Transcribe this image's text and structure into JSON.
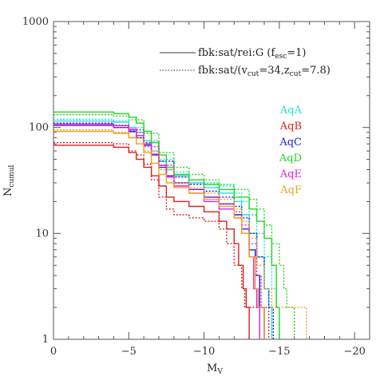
{
  "chart_data": {
    "type": "line",
    "xlabel": "M",
    "xlabel_sub": "V",
    "ylabel": "N",
    "ylabel_sub": "cumul",
    "xlim": [
      0,
      -21
    ],
    "ylim": [
      1,
      1000
    ],
    "y_scale": "log",
    "x_ticks": [
      {
        "value": 0,
        "label": "0"
      },
      {
        "value": -5,
        "label": "−5"
      },
      {
        "value": -10,
        "label": "−10"
      },
      {
        "value": -15,
        "label": "−15"
      },
      {
        "value": -20,
        "label": "−20"
      }
    ],
    "y_ticks": [
      {
        "value": 1,
        "label": "1"
      },
      {
        "value": 10,
        "label": "10"
      },
      {
        "value": 100,
        "label": "100"
      },
      {
        "value": 1000,
        "label": "1000"
      }
    ],
    "legend": {
      "placement": "top-right",
      "entries": [
        {
          "style": "solid",
          "text": "fbk:sat/rei:G (f",
          "sub": "esc",
          "tail": "=1)"
        },
        {
          "style": "dotted",
          "text": "fbk:sat/(v",
          "sub": "cut",
          "mid": "=34,z",
          "sub2": "cut",
          "tail": "=7.8)"
        }
      ]
    },
    "series": [
      {
        "name": "AqA",
        "color": "#22e0e0",
        "solid": [
          [
            0,
            115
          ],
          [
            -3,
            115
          ],
          [
            -4,
            112
          ],
          [
            -5,
            100
          ],
          [
            -5.5,
            90
          ],
          [
            -6,
            75
          ],
          [
            -6.5,
            60
          ],
          [
            -7,
            48
          ],
          [
            -7.5,
            40
          ],
          [
            -8,
            35
          ],
          [
            -9,
            30
          ],
          [
            -10,
            27
          ],
          [
            -11,
            24
          ],
          [
            -12,
            20
          ],
          [
            -12.5,
            15
          ],
          [
            -13,
            10
          ],
          [
            -13.5,
            6
          ],
          [
            -14,
            3
          ],
          [
            -14.3,
            2
          ],
          [
            -14.5,
            1
          ]
        ],
        "dotted": [
          [
            0,
            120
          ],
          [
            -3,
            120
          ],
          [
            -4,
            115
          ],
          [
            -5,
            100
          ],
          [
            -6,
            75
          ],
          [
            -7,
            50
          ],
          [
            -8,
            38
          ],
          [
            -9,
            32
          ],
          [
            -10,
            30
          ],
          [
            -11,
            28
          ],
          [
            -12,
            24
          ],
          [
            -12.5,
            20
          ],
          [
            -13,
            15
          ],
          [
            -13.5,
            10
          ],
          [
            -14,
            6
          ],
          [
            -14.5,
            3
          ],
          [
            -14.8,
            2
          ],
          [
            -15,
            1
          ]
        ]
      },
      {
        "name": "AqB",
        "color": "#e02020",
        "solid": [
          [
            0,
            68
          ],
          [
            -3,
            68
          ],
          [
            -4,
            65
          ],
          [
            -5,
            58
          ],
          [
            -5.5,
            50
          ],
          [
            -6,
            42
          ],
          [
            -6.5,
            35
          ],
          [
            -7,
            28
          ],
          [
            -7.5,
            22
          ],
          [
            -8,
            20
          ],
          [
            -9,
            18
          ],
          [
            -10,
            16
          ],
          [
            -11,
            13
          ],
          [
            -11.5,
            11
          ],
          [
            -12,
            8
          ],
          [
            -12.3,
            5
          ],
          [
            -12.6,
            3
          ],
          [
            -12.8,
            2
          ],
          [
            -13,
            1
          ]
        ],
        "dotted": [
          [
            0,
            72
          ],
          [
            -3,
            72
          ],
          [
            -4,
            70
          ],
          [
            -5,
            60
          ],
          [
            -5.5,
            55
          ],
          [
            -6,
            45
          ],
          [
            -6.5,
            32
          ],
          [
            -7,
            22
          ],
          [
            -7.5,
            17
          ],
          [
            -8,
            15
          ],
          [
            -9,
            14
          ],
          [
            -10,
            13
          ],
          [
            -11,
            11
          ],
          [
            -11.5,
            8
          ],
          [
            -12,
            5
          ],
          [
            -12.5,
            3
          ],
          [
            -12.7,
            2
          ],
          [
            -14,
            2
          ],
          [
            -14.3,
            1
          ]
        ]
      },
      {
        "name": "AqC",
        "color": "#2020d8",
        "solid": [
          [
            0,
            105
          ],
          [
            -3,
            105
          ],
          [
            -4,
            100
          ],
          [
            -5,
            92
          ],
          [
            -5.5,
            80
          ],
          [
            -6,
            68
          ],
          [
            -6.5,
            55
          ],
          [
            -7,
            42
          ],
          [
            -7.5,
            35
          ],
          [
            -8,
            30
          ],
          [
            -9,
            26
          ],
          [
            -10,
            22
          ],
          [
            -11,
            19
          ],
          [
            -12,
            15
          ],
          [
            -12.5,
            11
          ],
          [
            -13,
            7
          ],
          [
            -13.4,
            4
          ],
          [
            -13.7,
            2
          ],
          [
            -14,
            1
          ]
        ],
        "dotted": [
          [
            0,
            110
          ],
          [
            -3,
            110
          ],
          [
            -4,
            105
          ],
          [
            -5,
            95
          ],
          [
            -6,
            72
          ],
          [
            -7,
            48
          ],
          [
            -8,
            34
          ],
          [
            -9,
            29
          ],
          [
            -10,
            25
          ],
          [
            -11,
            22
          ],
          [
            -12,
            18
          ],
          [
            -12.5,
            14
          ],
          [
            -13,
            10
          ],
          [
            -13.5,
            6
          ],
          [
            -14,
            3
          ],
          [
            -14.3,
            2
          ],
          [
            -14.6,
            1
          ]
        ]
      },
      {
        "name": "AqD",
        "color": "#20d820",
        "solid": [
          [
            0,
            140
          ],
          [
            -3,
            140
          ],
          [
            -4,
            135
          ],
          [
            -5,
            125
          ],
          [
            -5.5,
            110
          ],
          [
            -6,
            92
          ],
          [
            -6.5,
            72
          ],
          [
            -7,
            55
          ],
          [
            -7.5,
            42
          ],
          [
            -8,
            36
          ],
          [
            -9,
            32
          ],
          [
            -10,
            29
          ],
          [
            -11,
            26
          ],
          [
            -12,
            22
          ],
          [
            -13,
            17
          ],
          [
            -13.5,
            13
          ],
          [
            -14,
            9
          ],
          [
            -14.5,
            5
          ],
          [
            -14.8,
            2
          ],
          [
            -15,
            1
          ]
        ],
        "dotted": [
          [
            0,
            132
          ],
          [
            -3,
            132
          ],
          [
            -4,
            128
          ],
          [
            -5,
            118
          ],
          [
            -6,
            88
          ],
          [
            -7,
            58
          ],
          [
            -8,
            42
          ],
          [
            -9,
            36
          ],
          [
            -10,
            32
          ],
          [
            -11,
            29
          ],
          [
            -12,
            26
          ],
          [
            -13,
            21
          ],
          [
            -13.5,
            17
          ],
          [
            -14,
            12
          ],
          [
            -14.5,
            8
          ],
          [
            -15,
            5
          ],
          [
            -15.3,
            3
          ],
          [
            -15.5,
            2
          ],
          [
            -16,
            1
          ]
        ]
      },
      {
        "name": "AqE",
        "color": "#e020e0",
        "solid": [
          [
            0,
            108
          ],
          [
            -3,
            108
          ],
          [
            -4,
            104
          ],
          [
            -5,
            96
          ],
          [
            -5.5,
            84
          ],
          [
            -6,
            70
          ],
          [
            -6.5,
            56
          ],
          [
            -7,
            44
          ],
          [
            -7.5,
            34
          ],
          [
            -8,
            28
          ],
          [
            -9,
            24
          ],
          [
            -10,
            20
          ],
          [
            -11,
            17
          ],
          [
            -12,
            14
          ],
          [
            -12.5,
            10
          ],
          [
            -13,
            6
          ],
          [
            -13.3,
            3
          ],
          [
            -13.5,
            2
          ],
          [
            -13.7,
            1
          ]
        ],
        "dotted": [
          [
            0,
            104
          ],
          [
            -3,
            104
          ],
          [
            -4,
            100
          ],
          [
            -5,
            90
          ],
          [
            -6,
            66
          ],
          [
            -7,
            44
          ],
          [
            -8,
            30
          ],
          [
            -9,
            26
          ],
          [
            -10,
            22
          ],
          [
            -11,
            19
          ],
          [
            -12,
            16
          ],
          [
            -12.5,
            12
          ],
          [
            -13,
            8
          ],
          [
            -13.5,
            4
          ],
          [
            -13.8,
            2
          ],
          [
            -14,
            1
          ]
        ]
      },
      {
        "name": "AqF",
        "color": "#f0a020",
        "solid": [
          [
            0,
            92
          ],
          [
            -3,
            92
          ],
          [
            -4,
            88
          ],
          [
            -5,
            80
          ],
          [
            -5.5,
            70
          ],
          [
            -6,
            58
          ],
          [
            -6.5,
            46
          ],
          [
            -7,
            36
          ],
          [
            -7.5,
            30
          ],
          [
            -8,
            27
          ],
          [
            -9,
            24
          ],
          [
            -10,
            21
          ],
          [
            -11,
            18
          ],
          [
            -12,
            14
          ],
          [
            -12.5,
            10
          ],
          [
            -13,
            6
          ],
          [
            -13.4,
            3
          ],
          [
            -13.6,
            2
          ],
          [
            -14,
            1
          ]
        ],
        "dotted": [
          [
            0,
            95
          ],
          [
            -3,
            95
          ],
          [
            -4,
            90
          ],
          [
            -5,
            80
          ],
          [
            -6,
            60
          ],
          [
            -7,
            40
          ],
          [
            -8,
            30
          ],
          [
            -9,
            27
          ],
          [
            -10,
            24
          ],
          [
            -11,
            21
          ],
          [
            -12,
            17
          ],
          [
            -12.5,
            13
          ],
          [
            -13,
            9
          ],
          [
            -13.5,
            5
          ],
          [
            -14,
            3
          ],
          [
            -14.5,
            2
          ],
          [
            -16.5,
            2
          ],
          [
            -16.8,
            1
          ]
        ]
      }
    ]
  }
}
